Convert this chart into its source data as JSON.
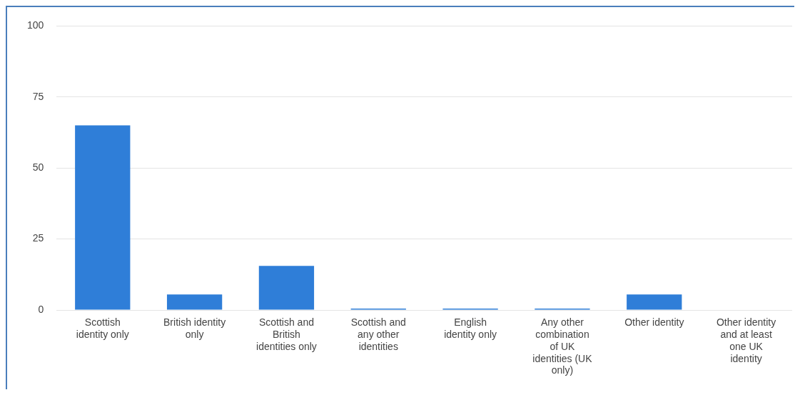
{
  "chart_data": {
    "type": "bar",
    "categories": [
      "Scottish identity only",
      "British identity only",
      "Scottish and British identities only",
      "Scottish and any other identities",
      "English identity only",
      "Any other combination of UK identities (UK only)",
      "Other identity",
      "Other identity and at least one UK identity"
    ],
    "values": [
      65,
      5.5,
      15.5,
      0.5,
      0.5,
      0.5,
      5.5,
      0
    ],
    "color": "#2f7ed8",
    "ylim": [
      0,
      100
    ],
    "yticks": [
      0,
      25,
      50,
      75,
      100
    ],
    "grid": "y",
    "legend": false
  }
}
